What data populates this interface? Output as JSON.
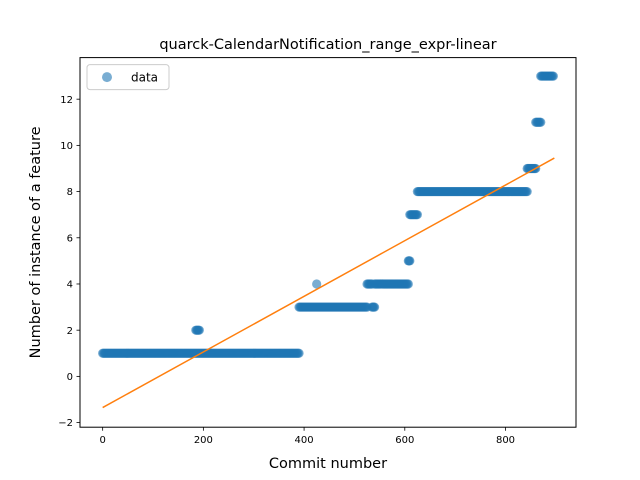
{
  "chart_data": {
    "type": "scatter",
    "title": "quarck-CalendarNotification_range_expr-linear",
    "xlabel": "Commit number",
    "ylabel": "Number of instance of a feature",
    "xlim": [
      -45,
      940
    ],
    "ylim": [
      -2.2,
      13.8
    ],
    "xticks": [
      0,
      200,
      400,
      600,
      800
    ],
    "yticks": [
      -2,
      0,
      2,
      4,
      6,
      8,
      10,
      12
    ],
    "grid": false,
    "legend": {
      "placement": "top-left",
      "entries": [
        "data"
      ]
    },
    "colors": {
      "points": "#1f77b4",
      "fit_line": "#ff7f0e"
    },
    "series": [
      {
        "name": "data",
        "kind": "scatter",
        "segments": [
          {
            "x_start": 0,
            "x_end": 390,
            "y": 1
          },
          {
            "x_start": 185,
            "x_end": 192,
            "y": 2
          },
          {
            "x_start": 390,
            "x_end": 525,
            "y": 3
          },
          {
            "x_start": 425,
            "x_end": 425,
            "y": 4
          },
          {
            "x_start": 525,
            "x_end": 535,
            "y": 4
          },
          {
            "x_start": 535,
            "x_end": 540,
            "y": 3
          },
          {
            "x_start": 540,
            "x_end": 607,
            "y": 4
          },
          {
            "x_start": 607,
            "x_end": 610,
            "y": 5
          },
          {
            "x_start": 610,
            "x_end": 625,
            "y": 7
          },
          {
            "x_start": 625,
            "x_end": 843,
            "y": 8
          },
          {
            "x_start": 843,
            "x_end": 860,
            "y": 9
          },
          {
            "x_start": 860,
            "x_end": 870,
            "y": 11
          },
          {
            "x_start": 870,
            "x_end": 895,
            "y": 13
          }
        ]
      },
      {
        "name": "",
        "kind": "line",
        "x": [
          0,
          897
        ],
        "y": [
          -1.35,
          9.45
        ]
      }
    ]
  }
}
